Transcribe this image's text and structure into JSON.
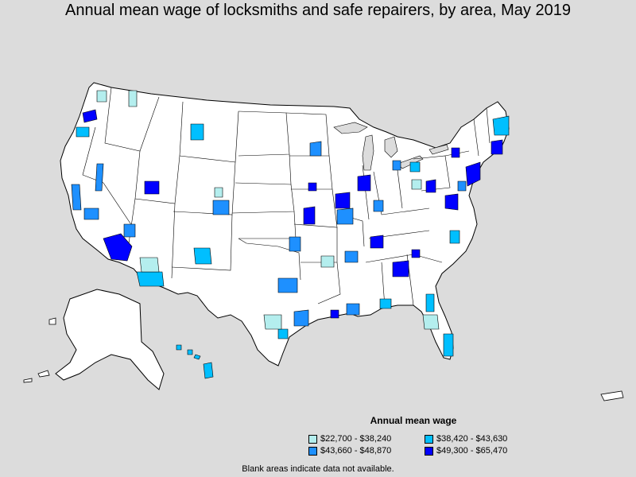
{
  "title": "Annual mean wage of locksmiths and safe repairers, by area, May 2019",
  "legend": {
    "title": "Annual mean wage",
    "items": [
      {
        "label": "$22,700 - $38,240",
        "color": "#b4eeee"
      },
      {
        "label": "$38,420 - $43,630",
        "color": "#00bfff"
      },
      {
        "label": "$43,660 - $48,870",
        "color": "#1e90ff"
      },
      {
        "label": "$49,300 - $65,470",
        "color": "#0000ff"
      }
    ]
  },
  "footnote": "Blank areas indicate data not available.",
  "colors": {
    "background": "#dcdcdc",
    "land": "#ffffff",
    "border": "#000000"
  }
}
